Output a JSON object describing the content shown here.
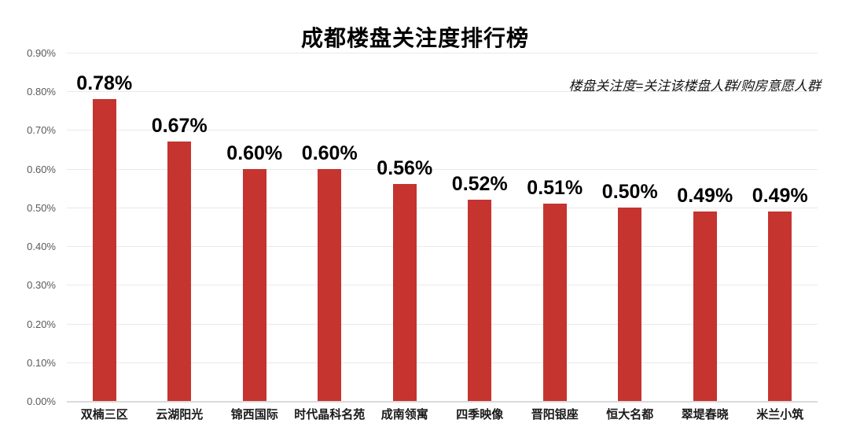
{
  "title": "成都楼盘关注度排行榜",
  "annotation": "楼盘关注度=关注该楼盘人群/购房意愿人群",
  "colors": {
    "background": "#ffffff",
    "bar": "#c5342f",
    "gridline": "#e9e9e9",
    "axis_baseline": "#dadada",
    "tick_label": "#595959",
    "value_label": "#000000",
    "category_label": "#1a1a1a"
  },
  "chart_data": {
    "type": "bar",
    "title": "成都楼盘关注度排行榜",
    "annotation": "楼盘关注度=关注该楼盘人群/购房意愿人群",
    "categories": [
      "双楠三区",
      "云湖阳光",
      "锦西国际",
      "时代晶科名苑",
      "成南领寓",
      "四季映像",
      "晋阳银座",
      "恒大名都",
      "翠堤春晓",
      "米兰小筑"
    ],
    "values": [
      0.78,
      0.67,
      0.6,
      0.6,
      0.56,
      0.52,
      0.51,
      0.5,
      0.49,
      0.49
    ],
    "value_labels": [
      "0.78%",
      "0.67%",
      "0.60%",
      "0.60%",
      "0.56%",
      "0.52%",
      "0.51%",
      "0.50%",
      "0.49%",
      "0.49%"
    ],
    "y_ticks": [
      "0.90%",
      "0.80%",
      "0.70%",
      "0.60%",
      "0.50%",
      "0.40%",
      "0.30%",
      "0.20%",
      "0.10%",
      "0.00%"
    ],
    "ylim": [
      0,
      0.9
    ],
    "unit": "%",
    "xlabel": "",
    "ylabel": "",
    "grid": true,
    "legend": false,
    "bar_color": "#c5342f"
  }
}
